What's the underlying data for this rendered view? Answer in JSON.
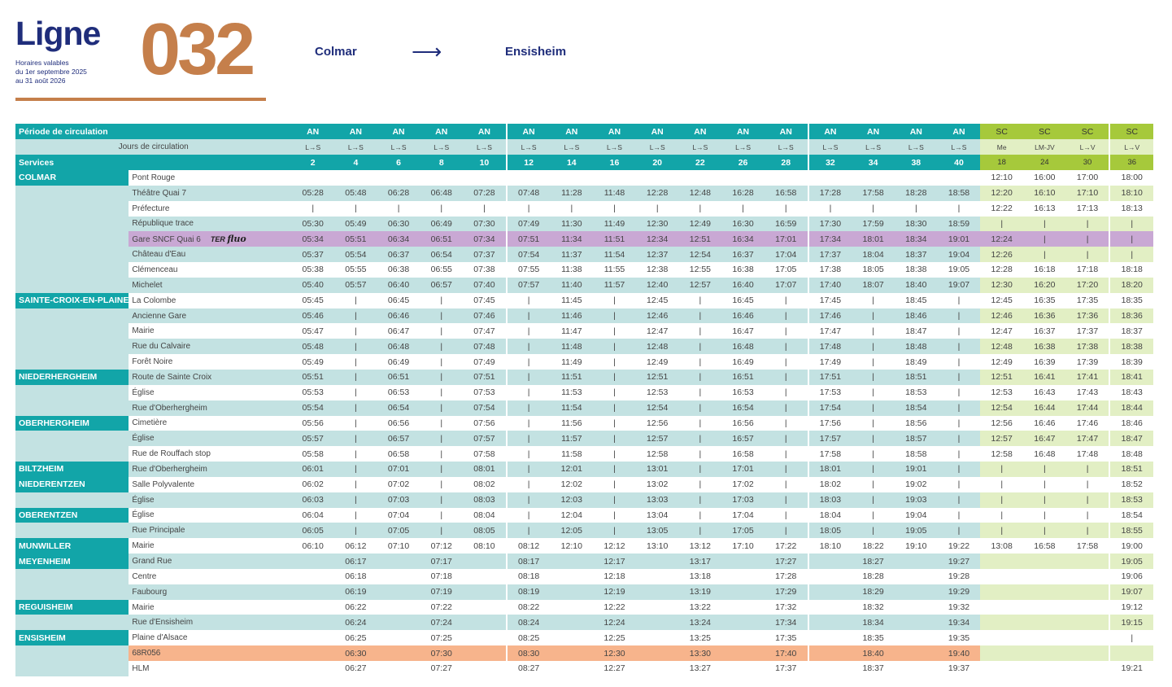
{
  "header": {
    "ligne_label": "Ligne",
    "line_number": "032",
    "validity": [
      "Horaires valables",
      "du 1er septembre 2025",
      "au 31 août 2026"
    ],
    "from": "Colmar",
    "arrow": "⟶",
    "to": "Ensisheim"
  },
  "colors": {
    "teal": "#12a5a8",
    "light_teal": "#c3e2e2",
    "green": "#a6c93b",
    "light_green": "#e2efc4",
    "purple": "#c9a8d4",
    "orange": "#f7b48c",
    "brand_orange": "#c57f4b",
    "navy": "#1f2d7b"
  },
  "table": {
    "period_label": "Période de circulation",
    "days_label": "Jours de circulation",
    "services_label": "Services",
    "ter_logo": {
      "ter": "TER",
      "fluo": "fluo"
    },
    "periods": [
      "AN",
      "AN",
      "AN",
      "AN",
      "AN",
      "AN",
      "AN",
      "AN",
      "AN",
      "AN",
      "AN",
      "AN",
      "AN",
      "AN",
      "AN",
      "AN",
      "SC",
      "SC",
      "SC",
      "SC"
    ],
    "days": [
      "L→S",
      "L→S",
      "L→S",
      "L→S",
      "L→S",
      "L→S",
      "L→S",
      "L→S",
      "L→S",
      "L→S",
      "L→S",
      "L→S",
      "L→S",
      "L→S",
      "L→S",
      "L→S",
      "Me",
      "LM-JV",
      "L→V",
      "L→V"
    ],
    "services": [
      "2",
      "4",
      "6",
      "8",
      "10",
      "12",
      "14",
      "16",
      "20",
      "22",
      "26",
      "28",
      "32",
      "34",
      "38",
      "40",
      "18",
      "24",
      "30",
      "36"
    ],
    "rows": [
      {
        "commune": "COLMAR",
        "stop": "Pont Rouge",
        "times": [
          "",
          "",
          "",
          "",
          "",
          "",
          "",
          "",
          "",
          "",
          "",
          "",
          "",
          "",
          "",
          "",
          "12:10",
          "16:00",
          "17:00",
          "18:00"
        ]
      },
      {
        "commune": "",
        "stop": "Théâtre Quai 7",
        "times": [
          "05:28",
          "05:48",
          "06:28",
          "06:48",
          "07:28",
          "07:48",
          "11:28",
          "11:48",
          "12:28",
          "12:48",
          "16:28",
          "16:58",
          "17:28",
          "17:58",
          "18:28",
          "18:58",
          "12:20",
          "16:10",
          "17:10",
          "18:10"
        ]
      },
      {
        "commune": "",
        "stop": "Préfecture",
        "times": [
          "|",
          "|",
          "|",
          "|",
          "|",
          "|",
          "|",
          "|",
          "|",
          "|",
          "|",
          "|",
          "|",
          "|",
          "|",
          "|",
          "12:22",
          "16:13",
          "17:13",
          "18:13"
        ]
      },
      {
        "commune": "",
        "stop": "République trace",
        "times": [
          "05:30",
          "05:49",
          "06:30",
          "06:49",
          "07:30",
          "07:49",
          "11:30",
          "11:49",
          "12:30",
          "12:49",
          "16:30",
          "16:59",
          "17:30",
          "17:59",
          "18:30",
          "18:59",
          "|",
          "|",
          "|",
          "|"
        ]
      },
      {
        "commune": "",
        "stop": "Gare SNCF Quai 6",
        "special": "purple",
        "times": [
          "05:34",
          "05:51",
          "06:34",
          "06:51",
          "07:34",
          "07:51",
          "11:34",
          "11:51",
          "12:34",
          "12:51",
          "16:34",
          "17:01",
          "17:34",
          "18:01",
          "18:34",
          "19:01",
          "12:24",
          "|",
          "|",
          "|"
        ]
      },
      {
        "commune": "",
        "stop": "Château d'Eau",
        "times": [
          "05:37",
          "05:54",
          "06:37",
          "06:54",
          "07:37",
          "07:54",
          "11:37",
          "11:54",
          "12:37",
          "12:54",
          "16:37",
          "17:04",
          "17:37",
          "18:04",
          "18:37",
          "19:04",
          "12:26",
          "|",
          "|",
          "|"
        ]
      },
      {
        "commune": "",
        "stop": "Clémenceau",
        "times": [
          "05:38",
          "05:55",
          "06:38",
          "06:55",
          "07:38",
          "07:55",
          "11:38",
          "11:55",
          "12:38",
          "12:55",
          "16:38",
          "17:05",
          "17:38",
          "18:05",
          "18:38",
          "19:05",
          "12:28",
          "16:18",
          "17:18",
          "18:18"
        ]
      },
      {
        "commune": "",
        "stop": "Michelet",
        "times": [
          "05:40",
          "05:57",
          "06:40",
          "06:57",
          "07:40",
          "07:57",
          "11:40",
          "11:57",
          "12:40",
          "12:57",
          "16:40",
          "17:07",
          "17:40",
          "18:07",
          "18:40",
          "19:07",
          "12:30",
          "16:20",
          "17:20",
          "18:20"
        ]
      },
      {
        "commune": "SAINTE-CROIX-EN-PLAINE",
        "stop": "La Colombe",
        "times": [
          "05:45",
          "|",
          "06:45",
          "|",
          "07:45",
          "|",
          "11:45",
          "|",
          "12:45",
          "|",
          "16:45",
          "|",
          "17:45",
          "|",
          "18:45",
          "|",
          "12:45",
          "16:35",
          "17:35",
          "18:35"
        ]
      },
      {
        "commune": "",
        "stop": "Ancienne Gare",
        "times": [
          "05:46",
          "|",
          "06:46",
          "|",
          "07:46",
          "|",
          "11:46",
          "|",
          "12:46",
          "|",
          "16:46",
          "|",
          "17:46",
          "|",
          "18:46",
          "|",
          "12:46",
          "16:36",
          "17:36",
          "18:36"
        ]
      },
      {
        "commune": "",
        "stop": "Mairie",
        "times": [
          "05:47",
          "|",
          "06:47",
          "|",
          "07:47",
          "|",
          "11:47",
          "|",
          "12:47",
          "|",
          "16:47",
          "|",
          "17:47",
          "|",
          "18:47",
          "|",
          "12:47",
          "16:37",
          "17:37",
          "18:37"
        ]
      },
      {
        "commune": "",
        "stop": "Rue du Calvaire",
        "times": [
          "05:48",
          "|",
          "06:48",
          "|",
          "07:48",
          "|",
          "11:48",
          "|",
          "12:48",
          "|",
          "16:48",
          "|",
          "17:48",
          "|",
          "18:48",
          "|",
          "12:48",
          "16:38",
          "17:38",
          "18:38"
        ]
      },
      {
        "commune": "",
        "stop": "Forêt Noire",
        "times": [
          "05:49",
          "|",
          "06:49",
          "|",
          "07:49",
          "|",
          "11:49",
          "|",
          "12:49",
          "|",
          "16:49",
          "|",
          "17:49",
          "|",
          "18:49",
          "|",
          "12:49",
          "16:39",
          "17:39",
          "18:39"
        ]
      },
      {
        "commune": "NIEDERHERGHEIM",
        "stop": "Route de Sainte Croix",
        "times": [
          "05:51",
          "|",
          "06:51",
          "|",
          "07:51",
          "|",
          "11:51",
          "|",
          "12:51",
          "|",
          "16:51",
          "|",
          "17:51",
          "|",
          "18:51",
          "|",
          "12:51",
          "16:41",
          "17:41",
          "18:41"
        ]
      },
      {
        "commune": "",
        "stop": "Église",
        "times": [
          "05:53",
          "|",
          "06:53",
          "|",
          "07:53",
          "|",
          "11:53",
          "|",
          "12:53",
          "|",
          "16:53",
          "|",
          "17:53",
          "|",
          "18:53",
          "|",
          "12:53",
          "16:43",
          "17:43",
          "18:43"
        ]
      },
      {
        "commune": "",
        "stop": "Rue d'Oberhergheim",
        "times": [
          "05:54",
          "|",
          "06:54",
          "|",
          "07:54",
          "|",
          "11:54",
          "|",
          "12:54",
          "|",
          "16:54",
          "|",
          "17:54",
          "|",
          "18:54",
          "|",
          "12:54",
          "16:44",
          "17:44",
          "18:44"
        ]
      },
      {
        "commune": "OBERHERGHEIM",
        "stop": "Cimetière",
        "times": [
          "05:56",
          "|",
          "06:56",
          "|",
          "07:56",
          "|",
          "11:56",
          "|",
          "12:56",
          "|",
          "16:56",
          "|",
          "17:56",
          "|",
          "18:56",
          "|",
          "12:56",
          "16:46",
          "17:46",
          "18:46"
        ]
      },
      {
        "commune": "",
        "stop": "Église",
        "times": [
          "05:57",
          "|",
          "06:57",
          "|",
          "07:57",
          "|",
          "11:57",
          "|",
          "12:57",
          "|",
          "16:57",
          "|",
          "17:57",
          "|",
          "18:57",
          "|",
          "12:57",
          "16:47",
          "17:47",
          "18:47"
        ]
      },
      {
        "commune": "",
        "stop": "Rue de Rouffach stop",
        "times": [
          "05:58",
          "|",
          "06:58",
          "|",
          "07:58",
          "|",
          "11:58",
          "|",
          "12:58",
          "|",
          "16:58",
          "|",
          "17:58",
          "|",
          "18:58",
          "|",
          "12:58",
          "16:48",
          "17:48",
          "18:48"
        ]
      },
      {
        "commune": "BILTZHEIM",
        "stop": "Rue d'Oberhergheim",
        "times": [
          "06:01",
          "|",
          "07:01",
          "|",
          "08:01",
          "|",
          "12:01",
          "|",
          "13:01",
          "|",
          "17:01",
          "|",
          "18:01",
          "|",
          "19:01",
          "|",
          "|",
          "|",
          "|",
          "18:51"
        ]
      },
      {
        "commune": "NIEDERENTZEN",
        "stop": "Salle Polyvalente",
        "times": [
          "06:02",
          "|",
          "07:02",
          "|",
          "08:02",
          "|",
          "12:02",
          "|",
          "13:02",
          "|",
          "17:02",
          "|",
          "18:02",
          "|",
          "19:02",
          "|",
          "|",
          "|",
          "|",
          "18:52"
        ]
      },
      {
        "commune": "",
        "stop": "Église",
        "times": [
          "06:03",
          "|",
          "07:03",
          "|",
          "08:03",
          "|",
          "12:03",
          "|",
          "13:03",
          "|",
          "17:03",
          "|",
          "18:03",
          "|",
          "19:03",
          "|",
          "|",
          "|",
          "|",
          "18:53"
        ]
      },
      {
        "commune": "OBERENTZEN",
        "stop": "Église",
        "times": [
          "06:04",
          "|",
          "07:04",
          "|",
          "08:04",
          "|",
          "12:04",
          "|",
          "13:04",
          "|",
          "17:04",
          "|",
          "18:04",
          "|",
          "19:04",
          "|",
          "|",
          "|",
          "|",
          "18:54"
        ]
      },
      {
        "commune": "",
        "stop": "Rue Principale",
        "times": [
          "06:05",
          "|",
          "07:05",
          "|",
          "08:05",
          "|",
          "12:05",
          "|",
          "13:05",
          "|",
          "17:05",
          "|",
          "18:05",
          "|",
          "19:05",
          "|",
          "|",
          "|",
          "|",
          "18:55"
        ]
      },
      {
        "commune": "MUNWILLER",
        "stop": "Mairie",
        "times": [
          "06:10",
          "06:12",
          "07:10",
          "07:12",
          "08:10",
          "08:12",
          "12:10",
          "12:12",
          "13:10",
          "13:12",
          "17:10",
          "17:22",
          "18:10",
          "18:22",
          "19:10",
          "19:22",
          "13:08",
          "16:58",
          "17:58",
          "19:00"
        ]
      },
      {
        "commune": "MEYENHEIM",
        "stop": "Grand Rue",
        "times": [
          "",
          "06:17",
          "",
          "07:17",
          "",
          "08:17",
          "",
          "12:17",
          "",
          "13:17",
          "",
          "17:27",
          "",
          "18:27",
          "",
          "19:27",
          "",
          "",
          "",
          "19:05"
        ]
      },
      {
        "commune": "",
        "stop": "Centre",
        "times": [
          "",
          "06:18",
          "",
          "07:18",
          "",
          "08:18",
          "",
          "12:18",
          "",
          "13:18",
          "",
          "17:28",
          "",
          "18:28",
          "",
          "19:28",
          "",
          "",
          "",
          "19:06"
        ]
      },
      {
        "commune": "",
        "stop": "Faubourg",
        "times": [
          "",
          "06:19",
          "",
          "07:19",
          "",
          "08:19",
          "",
          "12:19",
          "",
          "13:19",
          "",
          "17:29",
          "",
          "18:29",
          "",
          "19:29",
          "",
          "",
          "",
          "19:07"
        ]
      },
      {
        "commune": "REGUISHEIM",
        "stop": "Mairie",
        "times": [
          "",
          "06:22",
          "",
          "07:22",
          "",
          "08:22",
          "",
          "12:22",
          "",
          "13:22",
          "",
          "17:32",
          "",
          "18:32",
          "",
          "19:32",
          "",
          "",
          "",
          "19:12"
        ]
      },
      {
        "commune": "",
        "stop": "Rue d'Ensisheim",
        "times": [
          "",
          "06:24",
          "",
          "07:24",
          "",
          "08:24",
          "",
          "12:24",
          "",
          "13:24",
          "",
          "17:34",
          "",
          "18:34",
          "",
          "19:34",
          "",
          "",
          "",
          "19:15"
        ]
      },
      {
        "commune": "ENSISHEIM",
        "stop": "Plaine d'Alsace",
        "times": [
          "",
          "06:25",
          "",
          "07:25",
          "",
          "08:25",
          "",
          "12:25",
          "",
          "13:25",
          "",
          "17:35",
          "",
          "18:35",
          "",
          "19:35",
          "",
          "",
          "",
          "|"
        ]
      },
      {
        "commune": "",
        "stop": "68R056",
        "special": "orange",
        "times": [
          "",
          "06:30",
          "",
          "07:30",
          "",
          "08:30",
          "",
          "12:30",
          "",
          "13:30",
          "",
          "17:40",
          "",
          "18:40",
          "",
          "19:40",
          "",
          "",
          "",
          ""
        ]
      },
      {
        "commune": "",
        "stop": "HLM",
        "special": "last",
        "times": [
          "",
          "06:27",
          "",
          "07:27",
          "",
          "08:27",
          "",
          "12:27",
          "",
          "13:27",
          "",
          "17:37",
          "",
          "18:37",
          "",
          "19:37",
          "",
          "",
          "",
          "19:21"
        ]
      }
    ]
  }
}
